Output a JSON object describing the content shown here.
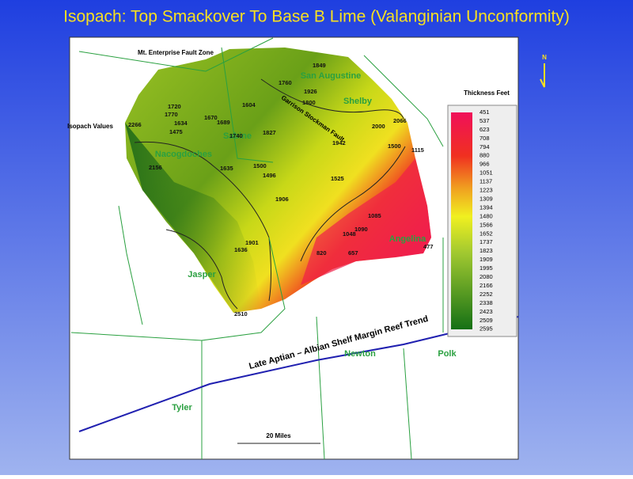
{
  "header": {
    "title": "Isopach: Top Smackover To Base B Lime (Valanginian Unconformity)"
  },
  "annotations": {
    "fault_zone": "Mt. Enterprise Fault Zone",
    "isopach_values": "Isopach Values",
    "thickness": "Thickness Feet",
    "north": "N",
    "scale": "20 Miles",
    "reef_trend": "Late Aptian – Albian Shelf Margin Reef Trend",
    "fault": "Garrison Stockman Fault"
  },
  "counties": [
    "Nacogdoches",
    "San Augustine",
    "Shelby",
    "Sabine",
    "Angelina",
    "Jasper",
    "Newton",
    "Polk",
    "Tyler"
  ],
  "contours": [
    "1500",
    "2000",
    "1500"
  ],
  "isopach_values": [
    "1720",
    "1770",
    "1634",
    "1475",
    "1670",
    "1689",
    "1604",
    "1740",
    "2266",
    "2156",
    "1635",
    "1496",
    "1906",
    "1827",
    "1942",
    "1926",
    "1800",
    "1760",
    "1849",
    "2066",
    "1115",
    "1525",
    "1085",
    "1090",
    "1048",
    "820",
    "657",
    "477",
    "1901",
    "1636",
    "2510"
  ],
  "legend": {
    "values": [
      "451",
      "537",
      "623",
      "708",
      "794",
      "880",
      "966",
      "1051",
      "1137",
      "1223",
      "1309",
      "1394",
      "1480",
      "1566",
      "1652",
      "1737",
      "1823",
      "1909",
      "1995",
      "2080",
      "2166",
      "2252",
      "2338",
      "2423",
      "2509",
      "2595"
    ]
  }
}
